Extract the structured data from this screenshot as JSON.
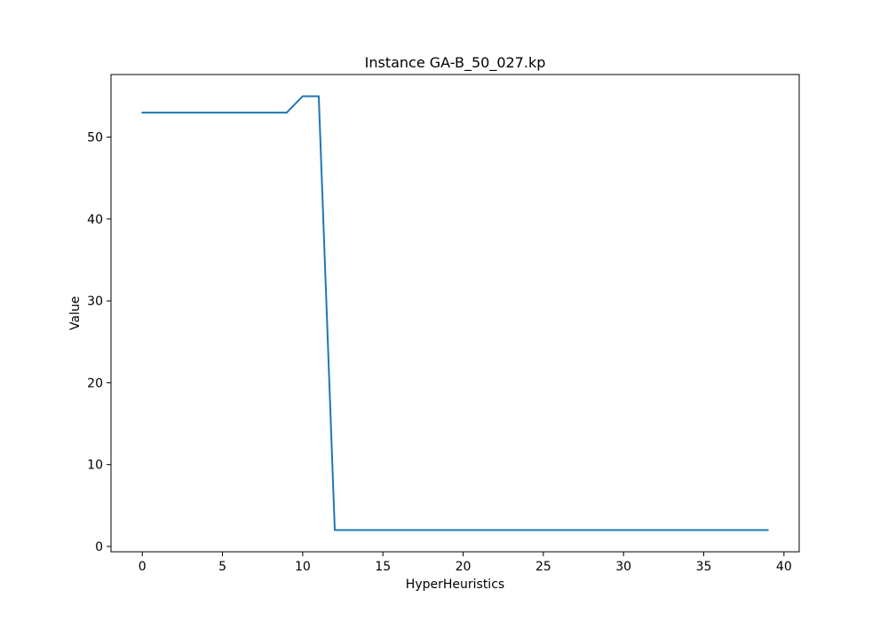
{
  "chart_data": {
    "type": "line",
    "title": "Instance GA-B_50_027.kp",
    "xlabel": "HyperHeuristics",
    "ylabel": "Value",
    "xlim": [
      -1.95,
      40.95
    ],
    "ylim": [
      -0.65,
      57.65
    ],
    "xticks": [
      0,
      5,
      10,
      15,
      20,
      25,
      30,
      35,
      40
    ],
    "yticks": [
      0,
      10,
      20,
      30,
      40,
      50
    ],
    "grid": false,
    "series": [
      {
        "color": "#1f77b4",
        "x": [
          0,
          1,
          2,
          3,
          4,
          5,
          6,
          7,
          8,
          9,
          10,
          11,
          12,
          13,
          14,
          15,
          16,
          17,
          18,
          19,
          20,
          21,
          22,
          23,
          24,
          25,
          26,
          27,
          28,
          29,
          30,
          31,
          32,
          33,
          34,
          35,
          36,
          37,
          38,
          39
        ],
        "y": [
          53,
          53,
          53,
          53,
          53,
          53,
          53,
          53,
          53,
          53,
          55,
          55,
          2,
          2,
          2,
          2,
          2,
          2,
          2,
          2,
          2,
          2,
          2,
          2,
          2,
          2,
          2,
          2,
          2,
          2,
          2,
          2,
          2,
          2,
          2,
          2,
          2,
          2,
          2,
          2
        ]
      }
    ]
  }
}
